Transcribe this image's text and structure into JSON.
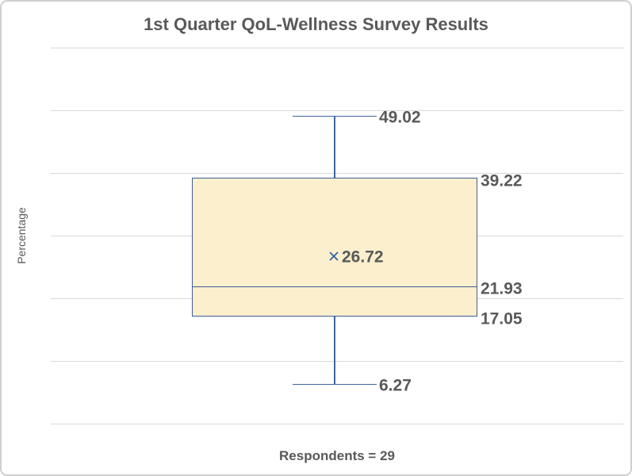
{
  "chart": {
    "title": "1st Quarter QoL-Wellness Survey Results",
    "ylabel": "Percentage",
    "xlabel": "Respondents = 29"
  },
  "chart_data": {
    "type": "boxplot",
    "title": "1st Quarter QoL-Wellness Survey Results",
    "xlabel": "Respondents = 29",
    "ylabel": "Percentage",
    "respondents": 29,
    "stats": {
      "whisker_high": 49.02,
      "q3": 39.22,
      "mean": 26.72,
      "median": 21.93,
      "q1": 17.05,
      "whisker_low": 6.27
    },
    "labels": {
      "whisker_high": "49.02",
      "q3": "39.22",
      "mean": "26.72",
      "median": "21.93",
      "q1": "17.05",
      "whisker_low": "6.27"
    },
    "ylim": [
      0,
      60
    ],
    "gridline_step": 10,
    "grid": true,
    "legend": "none"
  },
  "colors": {
    "box_fill": "#fcefcd",
    "box_border": "#3c5f94",
    "whisker": "#3e66a3",
    "mean_marker": "#2e5fa3",
    "gridline": "#d9d9d9",
    "text": "#595959",
    "chart_border": "#d0d0d0"
  },
  "icons": {
    "mean_marker": "x-cross-icon"
  }
}
